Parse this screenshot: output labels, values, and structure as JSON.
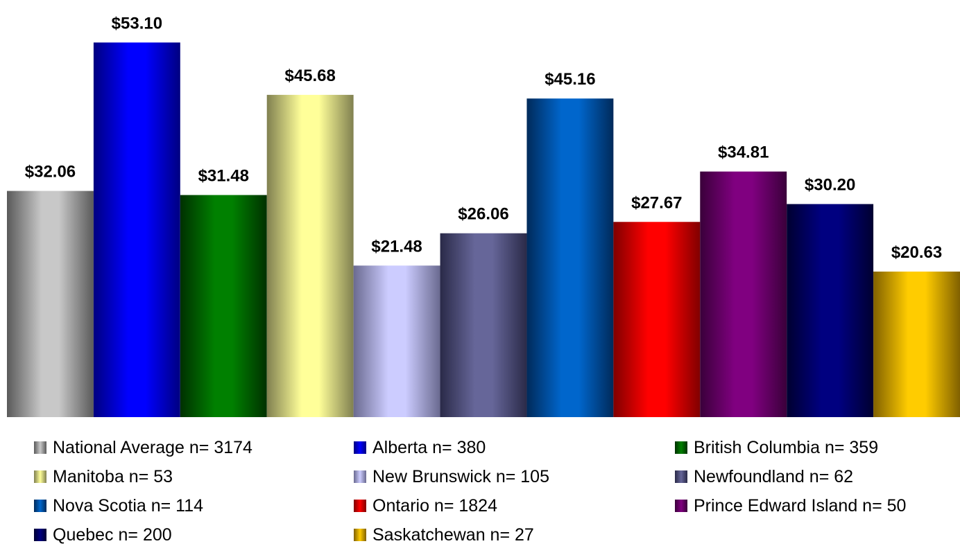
{
  "chart_data": {
    "type": "bar",
    "title": "",
    "xlabel": "",
    "ylabel": "",
    "ylim": [
      0,
      55
    ],
    "grid": false,
    "legend_position": "bottom",
    "categories": [
      "National Average n= 3174",
      "Alberta n= 380",
      "British Columbia n= 359",
      "Manitoba n= 53",
      "New Brunswick n= 105",
      "Newfoundland n= 62",
      "Nova Scotia n= 114",
      "Ontario n= 1824",
      "Prince Edward Island n= 50",
      "Quebec n= 200",
      "Saskatchewan n= 27"
    ],
    "values": [
      32.06,
      53.1,
      31.48,
      45.68,
      21.48,
      26.06,
      45.16,
      27.67,
      34.81,
      30.2,
      20.63
    ],
    "data_labels": [
      "$32.06",
      "$53.10",
      "$31.48",
      "$45.68",
      "$21.48",
      "$26.06",
      "$45.16",
      "$27.67",
      "$34.81",
      "$30.20",
      "$20.63"
    ],
    "colors": [
      {
        "dark": "#5a5a5a",
        "light": "#c8c8c8"
      },
      {
        "dark": "#000080",
        "light": "#0000ff"
      },
      {
        "dark": "#003000",
        "light": "#008000"
      },
      {
        "dark": "#808050",
        "light": "#ffff99"
      },
      {
        "dark": "#6a6a90",
        "light": "#ccccff"
      },
      {
        "dark": "#2a2a48",
        "light": "#666699"
      },
      {
        "dark": "#002a5a",
        "light": "#0066cc"
      },
      {
        "dark": "#800000",
        "light": "#ff0000"
      },
      {
        "dark": "#3a003a",
        "light": "#800080"
      },
      {
        "dark": "#000030",
        "light": "#000080"
      },
      {
        "dark": "#806000",
        "light": "#ffcc00"
      }
    ]
  }
}
